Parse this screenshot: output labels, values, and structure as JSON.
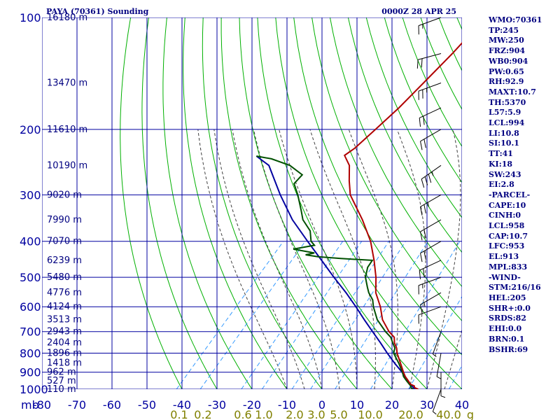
{
  "chart_data": {
    "type": "skew-t sounding",
    "title": "PAYA (70361) Sounding",
    "time": "0000Z 28 APR 25",
    "pressure_axis": {
      "unit_label": "mb",
      "ticks": [
        100,
        200,
        300,
        400,
        500,
        600,
        700,
        800,
        900,
        1000
      ],
      "range": [
        100,
        1000
      ],
      "scale": "log"
    },
    "temperature_axis": {
      "ticks": [
        "-80",
        "-70",
        "-60",
        "-50",
        "-40",
        "-30",
        "-20",
        "-10",
        "0",
        "10",
        "20",
        "30",
        "40"
      ],
      "range": [
        -80,
        40
      ]
    },
    "mixing_ratio_labels": [
      "0.1",
      "0.2",
      "0.6",
      "1.0",
      "2.0",
      "3.0",
      "5.0",
      "10.0",
      "20.0",
      "40.0",
      "g"
    ],
    "mixing_ratio_unit": "g",
    "height_labels": [
      {
        "p": 100,
        "label": "16180 m"
      },
      {
        "p": 150,
        "label": "13470 m"
      },
      {
        "p": 200,
        "label": "11610 m"
      },
      {
        "p": 250,
        "label": "10190 m"
      },
      {
        "p": 300,
        "label": "9020 m"
      },
      {
        "p": 350,
        "label": "7990 m"
      },
      {
        "p": 400,
        "label": "7070 m"
      },
      {
        "p": 450,
        "label": "6239 m"
      },
      {
        "p": 500,
        "label": "5480 m"
      },
      {
        "p": 550,
        "label": "4776 m"
      },
      {
        "p": 600,
        "label": "4124 m"
      },
      {
        "p": 650,
        "label": "3513 m"
      },
      {
        "p": 700,
        "label": "2943 m"
      },
      {
        "p": 750,
        "label": "2404 m"
      },
      {
        "p": 800,
        "label": "1896 m"
      },
      {
        "p": 850,
        "label": "1418 m"
      },
      {
        "p": 900,
        "label": "962 m"
      },
      {
        "p": 950,
        "label": "527 m"
      },
      {
        "p": 1000,
        "label": "110 m"
      }
    ],
    "temperature_profile": [
      [
        1000,
        27.5
      ],
      [
        990,
        26
      ],
      [
        980,
        25.5
      ],
      [
        970,
        24
      ],
      [
        950,
        22.5
      ],
      [
        925,
        20.5
      ],
      [
        900,
        18.8
      ],
      [
        850,
        15.5
      ],
      [
        800,
        12
      ],
      [
        775,
        10.5
      ],
      [
        750,
        8.5
      ],
      [
        725,
        7
      ],
      [
        700,
        4
      ],
      [
        650,
        -1
      ],
      [
        600,
        -5
      ],
      [
        550,
        -10
      ],
      [
        500,
        -14
      ],
      [
        450,
        -19
      ],
      [
        400,
        -25
      ],
      [
        350,
        -33
      ],
      [
        300,
        -43
      ],
      [
        275,
        -47
      ],
      [
        250,
        -51
      ],
      [
        235,
        -55
      ],
      [
        225,
        -54
      ],
      [
        200,
        -53
      ],
      [
        175,
        -52
      ],
      [
        150,
        -51.5
      ],
      [
        125,
        -51
      ],
      [
        100,
        -51
      ]
    ],
    "dewpoint_profile": [
      [
        1000,
        26
      ],
      [
        990,
        25
      ],
      [
        980,
        24.5
      ],
      [
        950,
        22
      ],
      [
        925,
        20
      ],
      [
        900,
        18.5
      ],
      [
        850,
        15
      ],
      [
        800,
        11
      ],
      [
        775,
        10
      ],
      [
        750,
        8
      ],
      [
        725,
        6
      ],
      [
        700,
        3
      ],
      [
        650,
        -2.5
      ],
      [
        600,
        -7
      ],
      [
        575,
        -9
      ],
      [
        550,
        -12
      ],
      [
        530,
        -14
      ],
      [
        500,
        -17
      ],
      [
        470,
        -19
      ],
      [
        450,
        -19.5
      ],
      [
        445,
        -29
      ],
      [
        440,
        -36
      ],
      [
        435,
        -40
      ],
      [
        430,
        -38
      ],
      [
        420,
        -45
      ],
      [
        410,
        -40
      ],
      [
        400,
        -42
      ],
      [
        375,
        -45
      ],
      [
        350,
        -50
      ],
      [
        330,
        -53
      ],
      [
        300,
        -58
      ],
      [
        280,
        -62
      ],
      [
        265,
        -62
      ],
      [
        250,
        -68
      ],
      [
        240,
        -75
      ],
      [
        236,
        -80
      ]
    ],
    "parcel_profile": [
      [
        1000,
        26.5
      ],
      [
        950,
        22.3
      ],
      [
        900,
        18.4
      ],
      [
        850,
        13.8
      ],
      [
        800,
        9.2
      ],
      [
        750,
        4.5
      ],
      [
        700,
        -0.7
      ],
      [
        650,
        -6.2
      ],
      [
        600,
        -12
      ],
      [
        550,
        -18.5
      ],
      [
        500,
        -26
      ],
      [
        450,
        -34
      ],
      [
        400,
        -43
      ],
      [
        350,
        -53
      ],
      [
        300,
        -63
      ],
      [
        250,
        -74
      ],
      [
        236,
        -80
      ]
    ],
    "wind_barbs_top": [
      {
        "p": 100,
        "dir": 250,
        "spd": 15
      },
      {
        "p": 125,
        "dir": 255,
        "spd": 20
      },
      {
        "p": 150,
        "dir": 250,
        "spd": 25
      },
      {
        "p": 175,
        "dir": 245,
        "spd": 20
      },
      {
        "p": 200,
        "dir": 240,
        "spd": 20
      },
      {
        "p": 250,
        "dir": 235,
        "spd": 35
      },
      {
        "p": 300,
        "dir": 240,
        "spd": 25
      },
      {
        "p": 350,
        "dir": 240,
        "spd": 20
      },
      {
        "p": 400,
        "dir": 240,
        "spd": 20
      },
      {
        "p": 450,
        "dir": 245,
        "spd": 20
      },
      {
        "p": 500,
        "dir": 250,
        "spd": 15
      },
      {
        "p": 550,
        "dir": 240,
        "spd": 15
      },
      {
        "p": 600,
        "dir": 250,
        "spd": 10
      },
      {
        "p": 700,
        "dir": 200,
        "spd": 5
      },
      {
        "p": 800,
        "dir": 190,
        "spd": 5
      },
      {
        "p": 900,
        "dir": 180,
        "spd": 5
      },
      {
        "p": 1000,
        "dir": 200,
        "spd": 5
      }
    ],
    "colors": {
      "temperature": "#b00000",
      "dewpoint": "#005000",
      "parcel": "#0000a0",
      "isobars_isotherms": "#0000a0",
      "dry_adiabats": "#00b000",
      "moist_adiabats": "#404040",
      "mixing_ratio": "#3399ff",
      "text": "#000080",
      "mixing_labels": "#808000"
    }
  },
  "indices": [
    "WMO:70361",
    "TP:245",
    "MW:250",
    "FRZ:904",
    "WB0:904",
    "PW:0.65",
    "RH:92.9",
    "MAXT:10.7",
    "TH:5370",
    "L57:5.9",
    "LCL:994",
    "LI:10.8",
    "SI:10.1",
    "TT:41",
    "KI:18",
    "SW:243",
    "EI:2.8",
    "-PARCEL-",
    "CAPE:10",
    "CINH:0",
    "LCL:958",
    "CAP:10.7",
    "LFC:953",
    "EL:913",
    "MPL:833",
    "-WIND-",
    "STM:216/16",
    "HEL:205",
    "SHR+:0.0",
    "SRDS:82",
    "EHI:0.0",
    "BRN:0.1",
    "BSHR:69"
  ]
}
